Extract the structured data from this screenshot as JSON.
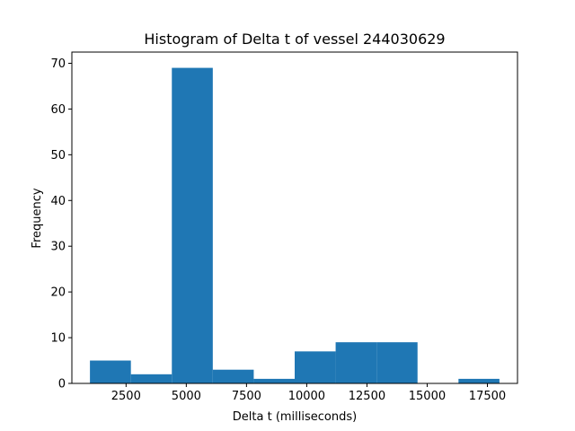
{
  "chart_data": {
    "type": "bar",
    "title": "Histogram of Delta t of vessel 244030629",
    "xlabel": "Delta t (milliseconds)",
    "ylabel": "Frequency",
    "bin_edges": [
      1000,
      2700,
      4400,
      6100,
      7800,
      9500,
      11200,
      12900,
      14600,
      16300,
      18000
    ],
    "values": [
      5,
      2,
      69,
      3,
      1,
      7,
      9,
      9,
      0,
      1
    ],
    "xlim": [
      250,
      18750
    ],
    "ylim": [
      0,
      72.45
    ],
    "xticks": [
      2500,
      5000,
      7500,
      10000,
      12500,
      15000,
      17500
    ],
    "xtick_labels": [
      "2500",
      "5000",
      "7500",
      "10000",
      "12500",
      "15000",
      "17500"
    ],
    "yticks": [
      0,
      10,
      20,
      30,
      40,
      50,
      60,
      70
    ],
    "ytick_labels": [
      "0",
      "10",
      "20",
      "30",
      "40",
      "50",
      "60",
      "70"
    ],
    "bar_color": "#1f77b4",
    "grid": false,
    "legend": "none"
  }
}
